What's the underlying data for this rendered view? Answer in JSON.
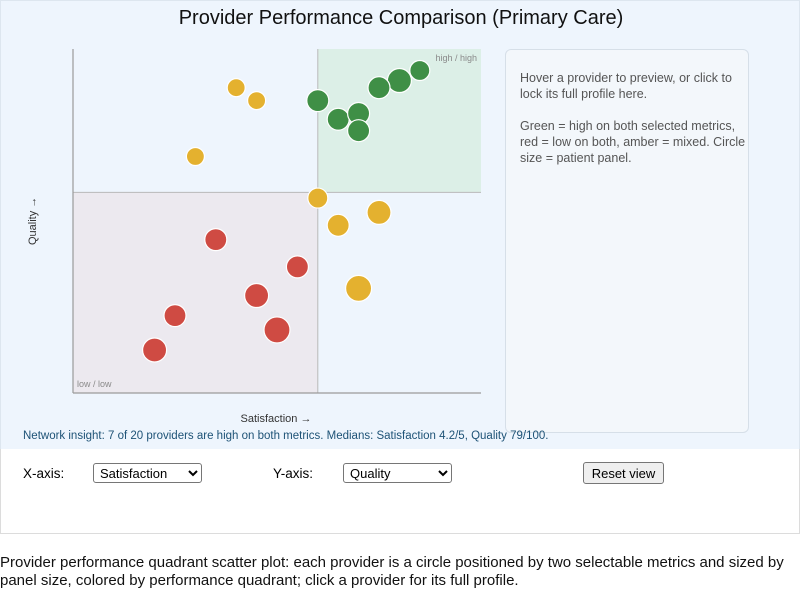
{
  "page": {
    "title": "Provider Performance Comparison (Primary Care)",
    "caption": "Provider performance quadrant scatter plot: each provider is a circle positioned by two selectable metrics and sized by panel size, colored by performance quadrant; click a provider for its full profile."
  },
  "info_panel": {
    "hint": "Hover a provider to preview, or click to lock its full profile here.",
    "legend_text": "Green = high on both selected metrics, red = low on both, amber = mixed. Circle size = patient panel."
  },
  "insight": "Network insight: 7 of 20 providers are high on both metrics. Medians: Satisfaction 4.2/5, Quality 79/100.",
  "controls": {
    "x_axis_label": "X-axis:",
    "x_axis_value": "Satisfaction",
    "y_axis_label": "Y-axis:",
    "y_axis_value": "Quality",
    "reset_label": "Reset view"
  },
  "colors": {
    "high_high": "#3f8f46",
    "low_low": "#cf4b43",
    "mixed": "#e4b12f",
    "high_high_zone": "#dcefe7",
    "low_low_zone": "#ece9ef",
    "panel_bg": "#eef5fd"
  },
  "chart_data": {
    "type": "scatter",
    "xlabel": "Satisfaction →",
    "ylabel": "Quality →",
    "x_median": 4.2,
    "y_median": 79,
    "xlim": [
      3.0,
      5.0
    ],
    "ylim": [
      65,
      89
    ],
    "quadrant_labels": {
      "high_high": "high / high",
      "low_low": "low / low"
    },
    "size_meaning": "patient panel",
    "points": [
      {
        "x": 4.7,
        "y": 87.5,
        "size": 1.0,
        "quadrant": "high_high"
      },
      {
        "x": 4.6,
        "y": 86.8,
        "size": 1.2,
        "quadrant": "high_high"
      },
      {
        "x": 4.5,
        "y": 86.3,
        "size": 1.1,
        "quadrant": "high_high"
      },
      {
        "x": 4.2,
        "y": 85.4,
        "size": 1.1,
        "quadrant": "high_high"
      },
      {
        "x": 4.3,
        "y": 84.1,
        "size": 1.1,
        "quadrant": "high_high"
      },
      {
        "x": 4.4,
        "y": 84.5,
        "size": 1.1,
        "quadrant": "high_high"
      },
      {
        "x": 4.4,
        "y": 83.3,
        "size": 1.1,
        "quadrant": "high_high"
      },
      {
        "x": 3.8,
        "y": 86.3,
        "size": 0.9,
        "quadrant": "mixed"
      },
      {
        "x": 3.9,
        "y": 85.4,
        "size": 0.9,
        "quadrant": "mixed"
      },
      {
        "x": 3.6,
        "y": 81.5,
        "size": 0.9,
        "quadrant": "mixed"
      },
      {
        "x": 4.2,
        "y": 78.6,
        "size": 1.0,
        "quadrant": "mixed"
      },
      {
        "x": 4.3,
        "y": 76.7,
        "size": 1.1,
        "quadrant": "mixed"
      },
      {
        "x": 4.5,
        "y": 77.6,
        "size": 1.2,
        "quadrant": "mixed"
      },
      {
        "x": 4.4,
        "y": 72.3,
        "size": 1.3,
        "quadrant": "mixed"
      },
      {
        "x": 3.7,
        "y": 75.7,
        "size": 1.1,
        "quadrant": "low_low"
      },
      {
        "x": 4.1,
        "y": 73.8,
        "size": 1.1,
        "quadrant": "low_low"
      },
      {
        "x": 3.9,
        "y": 71.8,
        "size": 1.2,
        "quadrant": "low_low"
      },
      {
        "x": 3.5,
        "y": 70.4,
        "size": 1.1,
        "quadrant": "low_low"
      },
      {
        "x": 4.0,
        "y": 69.4,
        "size": 1.3,
        "quadrant": "low_low"
      },
      {
        "x": 3.4,
        "y": 68.0,
        "size": 1.2,
        "quadrant": "low_low"
      }
    ]
  }
}
